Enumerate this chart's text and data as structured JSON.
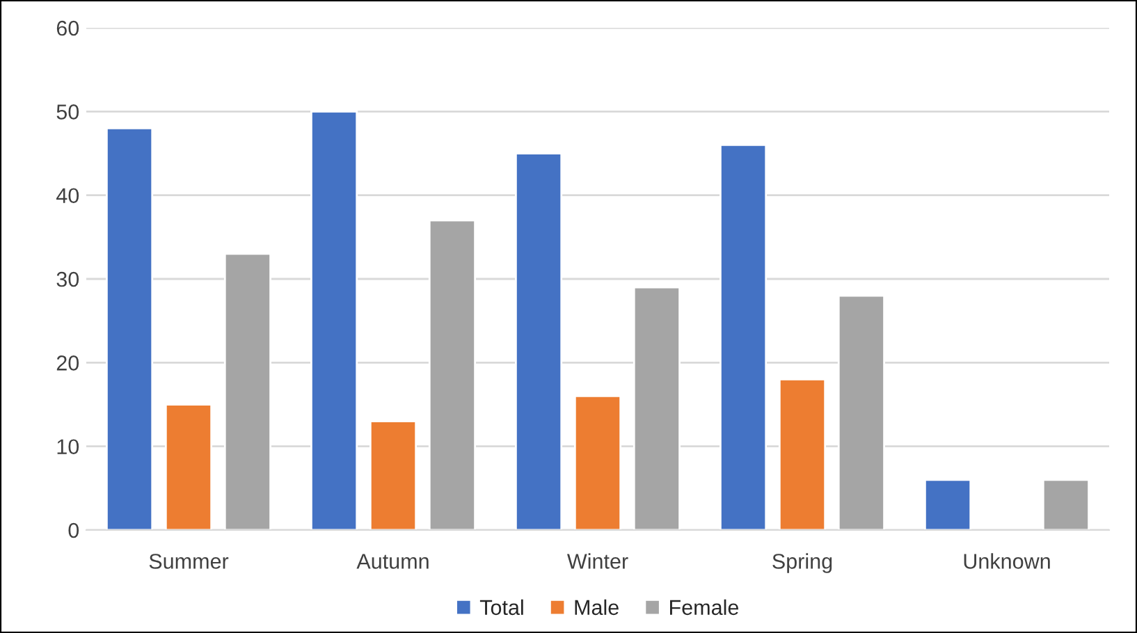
{
  "chart_data": {
    "type": "bar",
    "categories": [
      "Summer",
      "Autumn",
      "Winter",
      "Spring",
      "Unknown"
    ],
    "series": [
      {
        "name": "Total",
        "color": "#4472c4",
        "values": [
          48,
          50,
          45,
          46,
          6
        ]
      },
      {
        "name": "Male",
        "color": "#ed7d31",
        "values": [
          15,
          13,
          16,
          18,
          null
        ]
      },
      {
        "name": "Female",
        "color": "#a5a5a5",
        "values": [
          33,
          37,
          29,
          28,
          6
        ]
      }
    ],
    "ylim": [
      0,
      60
    ],
    "yticks": [
      0,
      10,
      20,
      30,
      40,
      50,
      60
    ],
    "grid": "y",
    "legend": "bottom"
  }
}
